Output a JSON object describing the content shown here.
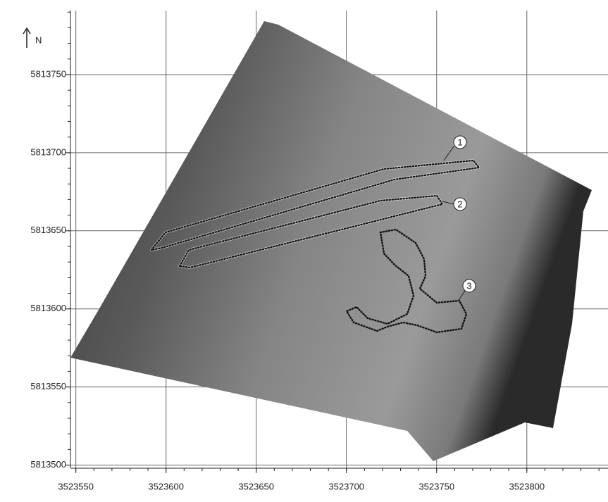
{
  "map": {
    "north_label": "N",
    "xlim": [
      3523547,
      3523845
    ],
    "ylim": [
      5813498,
      5813791
    ],
    "xticks": [
      3523550,
      3523600,
      3523650,
      3523700,
      3523750,
      3523800
    ],
    "yticks": [
      5813500,
      5813550,
      5813600,
      5813650,
      5813700,
      5813750
    ],
    "zones": [
      {
        "label": "1"
      },
      {
        "label": "2"
      },
      {
        "label": "3"
      }
    ]
  }
}
